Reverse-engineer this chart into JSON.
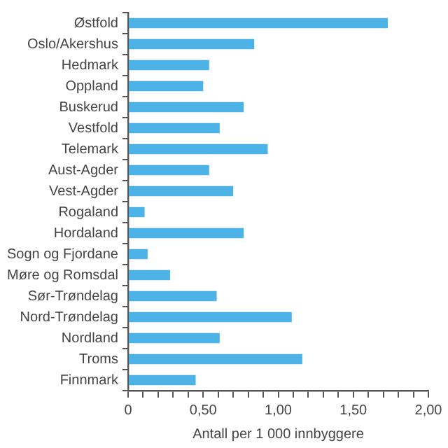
{
  "chart_data": {
    "type": "bar",
    "orientation": "horizontal",
    "xlabel": "Antall per 1 000 innbyggere",
    "categories": [
      "Østfold",
      "Oslo/Akershus",
      "Hedmark",
      "Oppland",
      "Buskerud",
      "Vestfold",
      "Telemark",
      "Aust-Agder",
      "Vest-Agder",
      "Rogaland",
      "Hordaland",
      "Sogn og Fjordane",
      "Møre og Romsdal",
      "Sør-Trøndelag",
      "Nord-Trøndelag",
      "Nordland",
      "Troms",
      "Finnmark"
    ],
    "values": [
      1.73,
      0.84,
      0.54,
      0.5,
      0.77,
      0.61,
      0.93,
      0.54,
      0.7,
      0.11,
      0.77,
      0.13,
      0.28,
      0.59,
      1.09,
      0.61,
      1.16,
      0.45
    ],
    "color": "#4db3e6",
    "xlim": [
      0,
      2
    ],
    "xticks": [
      0,
      {
        "value": 0.1,
        "label": null
      },
      {
        "value": 0.2,
        "label": null
      },
      {
        "value": 0.3,
        "label": null
      },
      {
        "value": 0.4,
        "label": null
      },
      {
        "value": 0.5,
        "label": "0,50"
      },
      {
        "value": 0.6,
        "label": null
      },
      {
        "value": 0.7,
        "label": null
      },
      {
        "value": 0.8,
        "label": null
      },
      {
        "value": 0.9,
        "label": null
      },
      {
        "value": 1,
        "label": "1,00"
      },
      {
        "value": 1.1,
        "label": null
      },
      {
        "value": 1.2,
        "label": null
      },
      {
        "value": 1.3,
        "label": null
      },
      {
        "value": 1.4,
        "label": null
      },
      {
        "value": 1.5,
        "label": "1,50"
      },
      {
        "value": 1.6,
        "label": null
      },
      {
        "value": 1.7,
        "label": null
      },
      {
        "value": 1.8,
        "label": null
      },
      {
        "value": 1.9,
        "label": null
      },
      {
        "value": 2,
        "label": "2,00"
      }
    ],
    "grid": false,
    "legend": false
  }
}
